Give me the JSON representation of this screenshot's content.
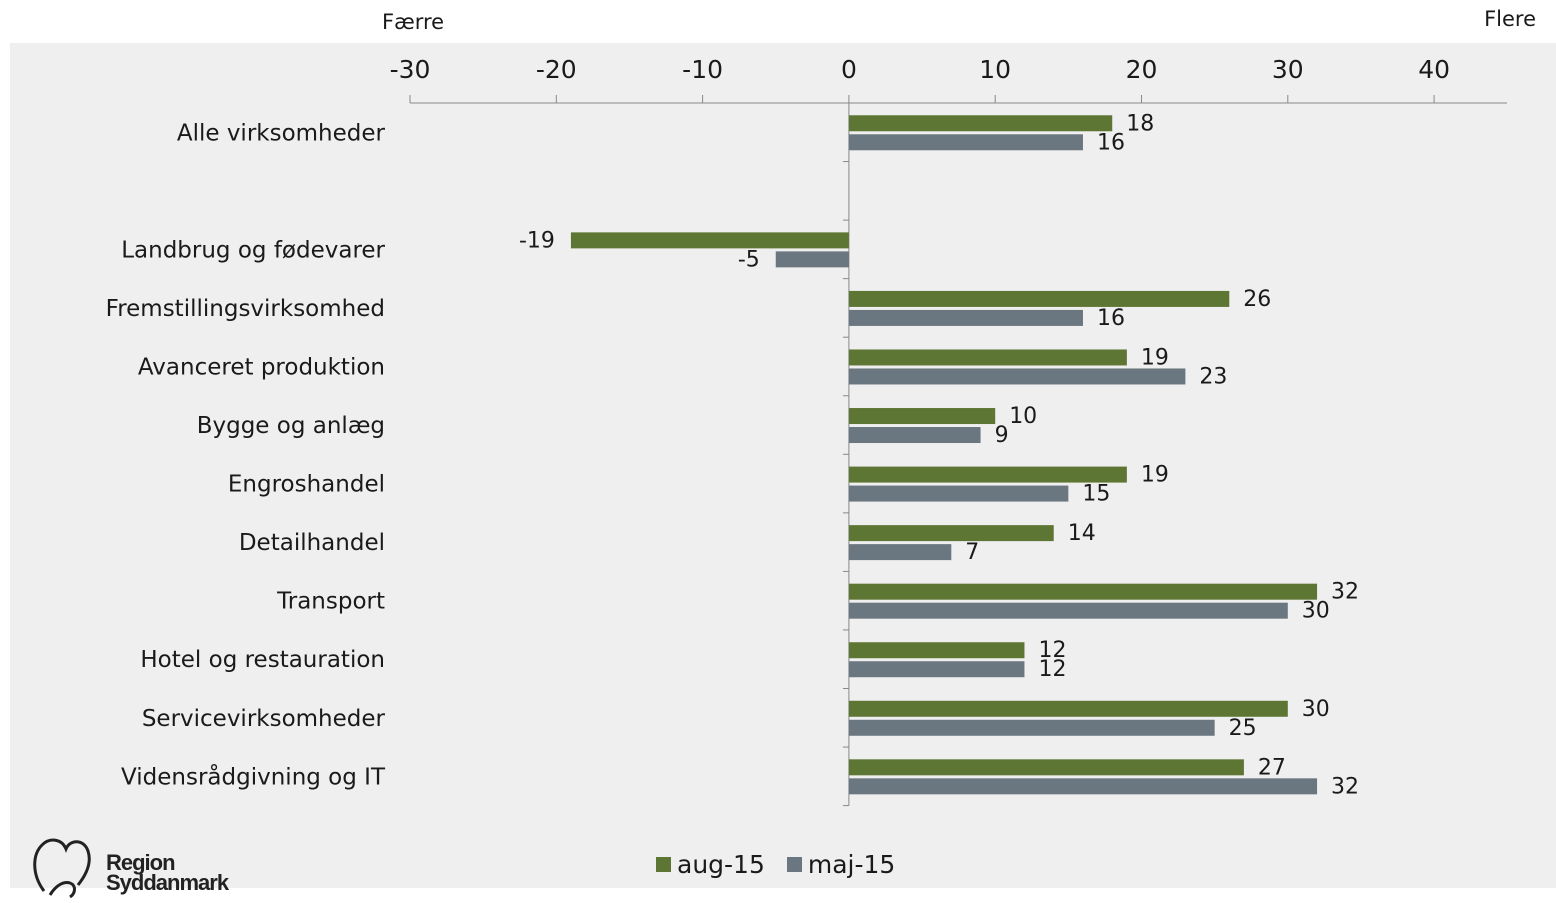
{
  "annotations": {
    "left": "Færre",
    "right": "Flere"
  },
  "colors": {
    "aug": "#5e7634",
    "maj": "#6b7780",
    "plot_bg": "#efefef",
    "axis": "#888888"
  },
  "logo": {
    "line1": "Region",
    "line2": "Syddanmark"
  },
  "chart_data": {
    "type": "bar",
    "orientation": "horizontal",
    "categories": [
      "Alle virksomheder",
      "",
      "Landbrug og fødevarer",
      "Fremstillingsvirksomhed",
      "Avanceret produktion",
      "Bygge og anlæg",
      "Engroshandel",
      "Detailhandel",
      "Transport",
      "Hotel og restauration",
      "Servicevirksomheder",
      "Vidensrådgivning og IT"
    ],
    "series": [
      {
        "name": "aug-15",
        "values": [
          18,
          null,
          -19,
          26,
          19,
          10,
          19,
          14,
          32,
          12,
          30,
          27
        ]
      },
      {
        "name": "maj-15",
        "values": [
          16,
          null,
          -5,
          16,
          23,
          9,
          15,
          7,
          30,
          12,
          25,
          32
        ]
      }
    ],
    "xlim": [
      -30,
      45
    ],
    "xticks": [
      -30,
      -20,
      -10,
      0,
      10,
      20,
      30,
      40
    ],
    "legend": "bottom-center",
    "grid": false
  }
}
